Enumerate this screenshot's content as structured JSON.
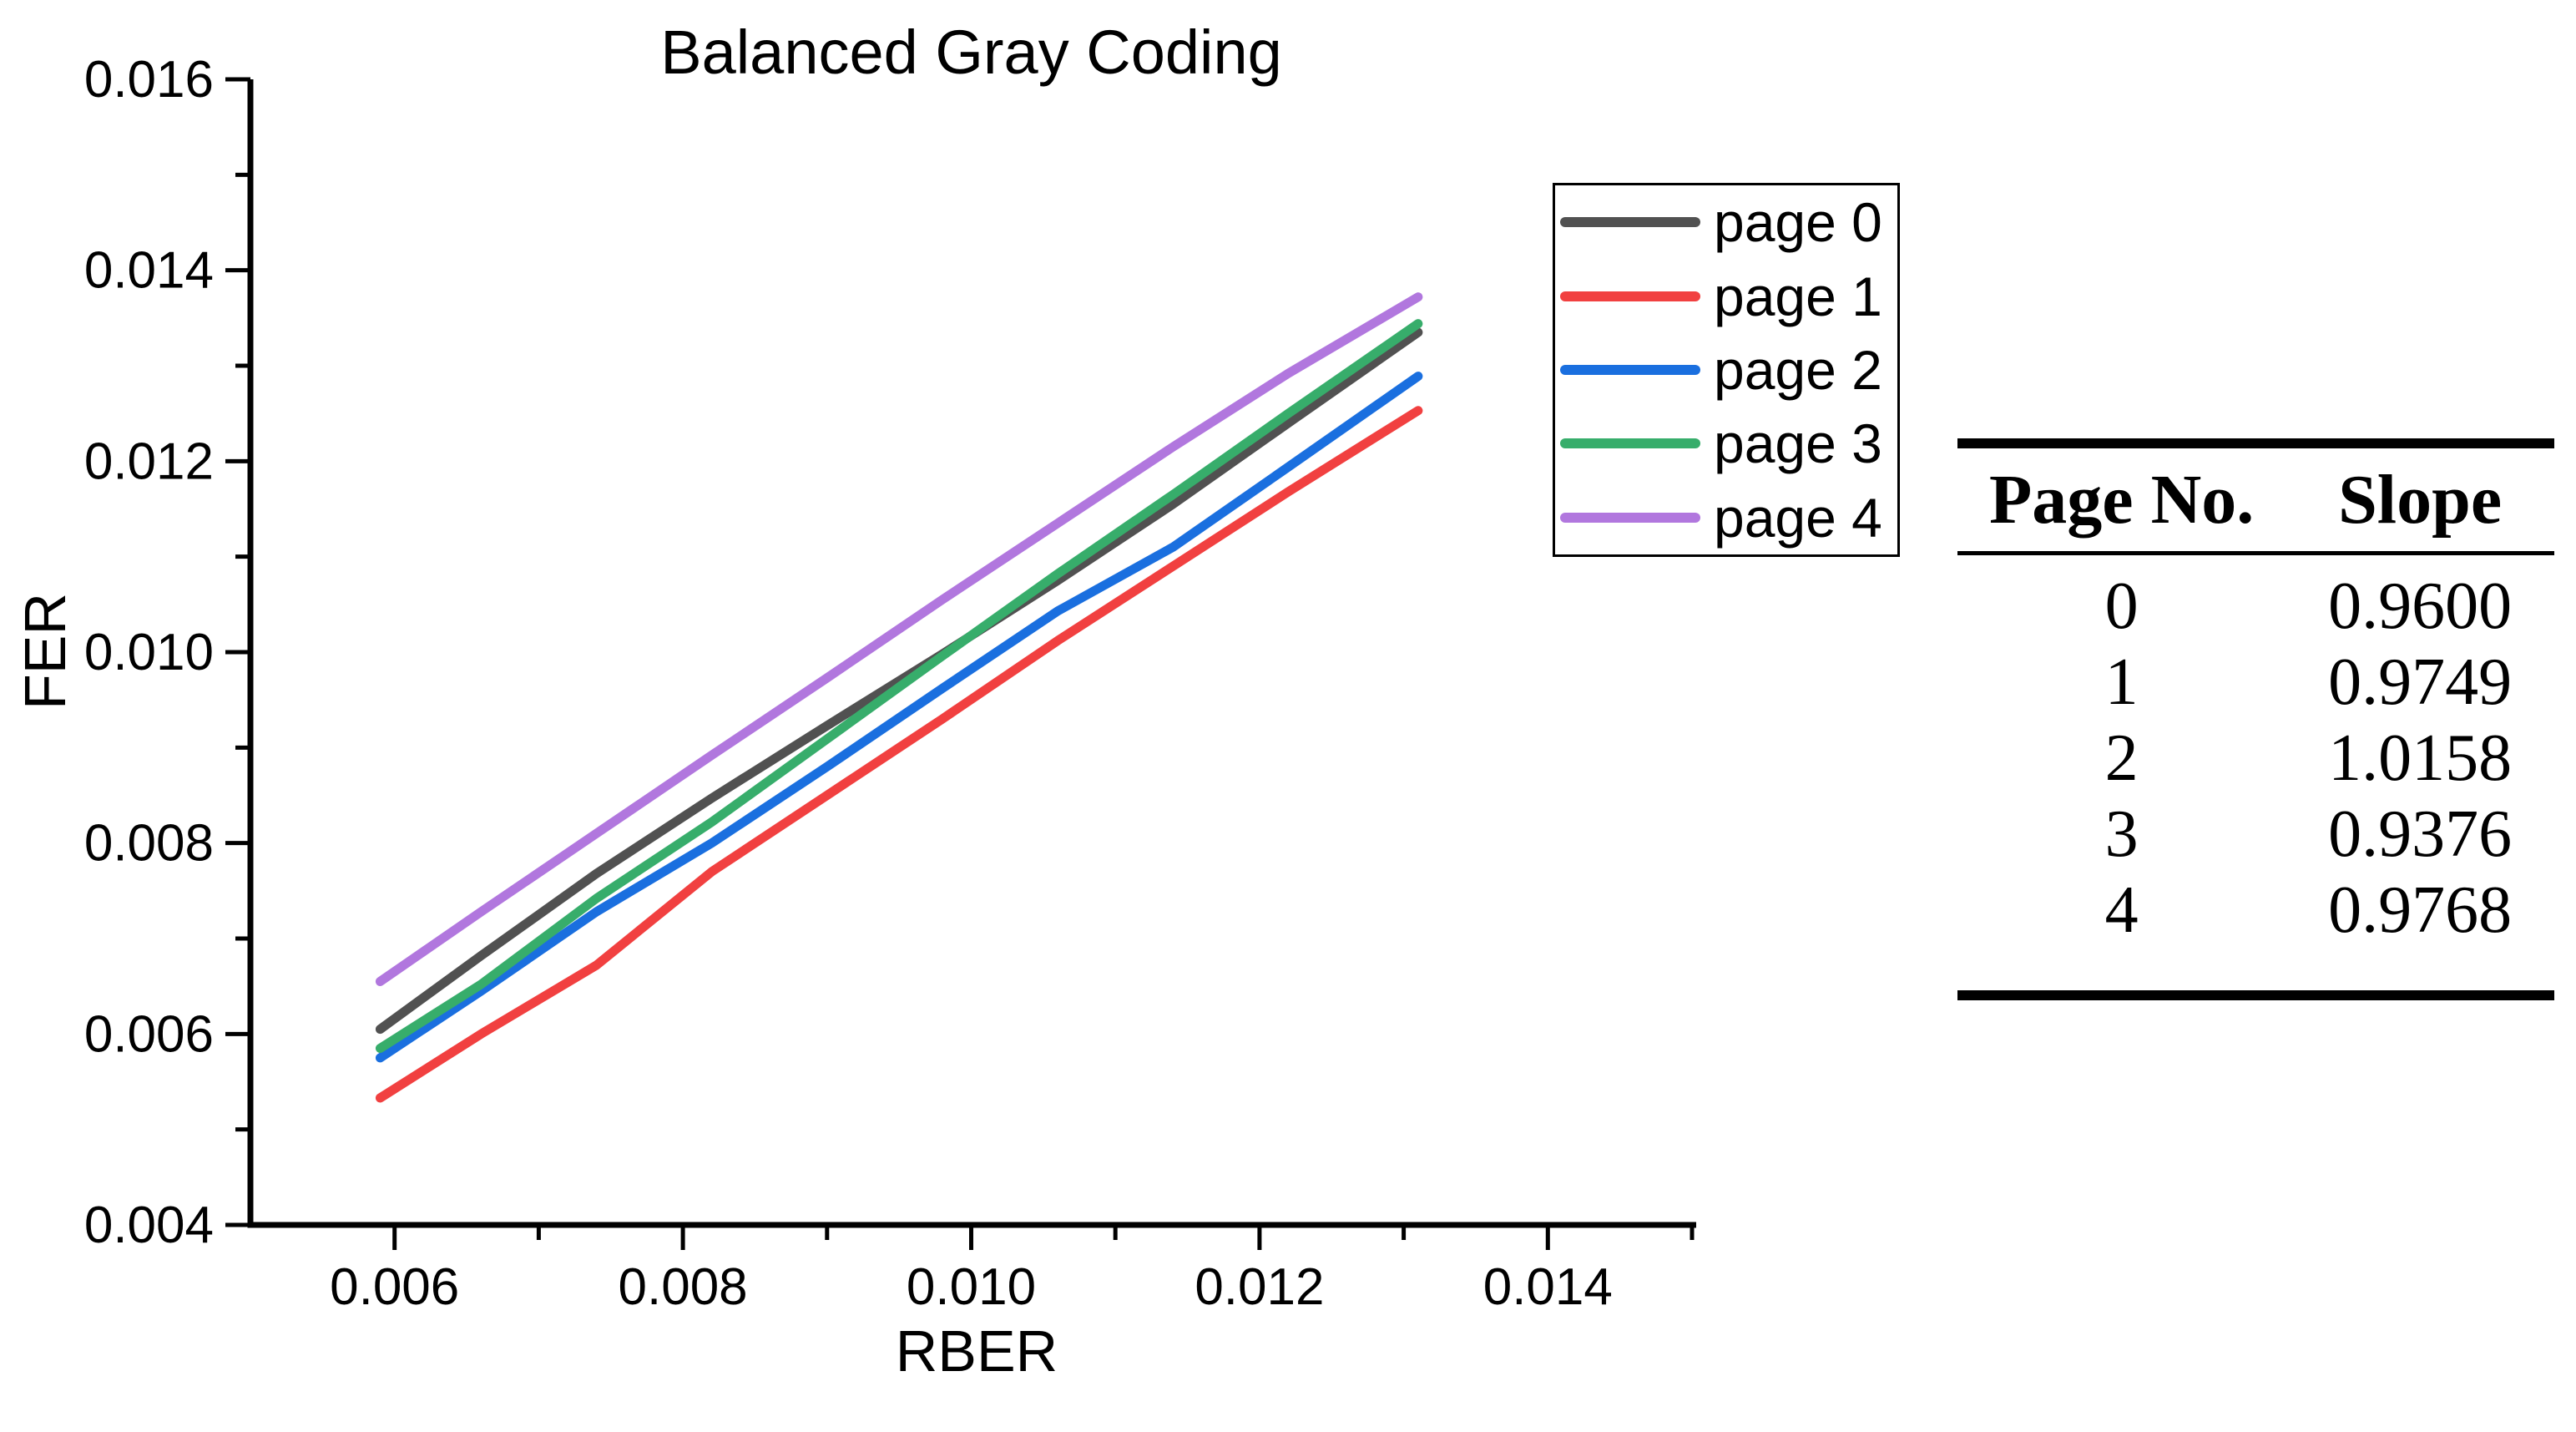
{
  "title": "Balanced Gray Coding",
  "colors": {
    "page0": "#515151",
    "page1": "#F14040",
    "page2": "#1A6FDF",
    "page3": "#37AD6B",
    "page4": "#B177DE",
    "axis": "#000000"
  },
  "chart_data": {
    "type": "line",
    "title": "Balanced Gray Coding",
    "xlabel": "RBER",
    "ylabel": "FER",
    "xlim": [
      0.005,
      0.015
    ],
    "ylim": [
      0.004,
      0.016
    ],
    "grid": false,
    "legend_position": "upper-right-inside",
    "x_major_ticks": [
      {
        "v": 0.006,
        "label": "0.006"
      },
      {
        "v": 0.008,
        "label": "0.008"
      },
      {
        "v": 0.01,
        "label": "0.010"
      },
      {
        "v": 0.012,
        "label": "0.012"
      },
      {
        "v": 0.014,
        "label": "0.014"
      }
    ],
    "x_minor_ticks": [
      0.007,
      0.009,
      0.011,
      0.013,
      0.015
    ],
    "y_major_ticks": [
      {
        "v": 0.004,
        "label": "0.004"
      },
      {
        "v": 0.006,
        "label": "0.006"
      },
      {
        "v": 0.008,
        "label": "0.008"
      },
      {
        "v": 0.01,
        "label": "0.010"
      },
      {
        "v": 0.012,
        "label": "0.012"
      },
      {
        "v": 0.014,
        "label": "0.014"
      },
      {
        "v": 0.016,
        "label": "0.016"
      }
    ],
    "y_minor_ticks": [
      0.005,
      0.007,
      0.009,
      0.011,
      0.013,
      0.015
    ],
    "x": [
      0.0059,
      0.0066,
      0.0074,
      0.0082,
      0.009,
      0.0098,
      0.0106,
      0.0114,
      0.0122,
      0.0131
    ],
    "series": [
      {
        "name": "page 0",
        "color": "#515151",
        "y": [
          0.00605,
          0.00682,
          0.00768,
          0.00847,
          0.00923,
          0.00998,
          0.01075,
          0.01155,
          0.0124,
          0.01335
        ]
      },
      {
        "name": "page 1",
        "color": "#F14040",
        "y": [
          0.00533,
          0.006,
          0.00672,
          0.0077,
          0.0085,
          0.0093,
          0.01012,
          0.0109,
          0.01168,
          0.01253
        ]
      },
      {
        "name": "page 2",
        "color": "#1A6FDF",
        "y": [
          0.00575,
          0.00645,
          0.00728,
          0.008,
          0.0088,
          0.00962,
          0.01043,
          0.0111,
          0.01194,
          0.01289
        ]
      },
      {
        "name": "page 3",
        "color": "#37AD6B",
        "y": [
          0.00585,
          0.00652,
          0.00742,
          0.00822,
          0.00909,
          0.00996,
          0.01082,
          0.01165,
          0.0125,
          0.01344
        ]
      },
      {
        "name": "page 4",
        "color": "#B177DE",
        "y": [
          0.00655,
          0.00728,
          0.0081,
          0.00892,
          0.00973,
          0.01055,
          0.01135,
          0.01215,
          0.01292,
          0.01372
        ]
      }
    ]
  },
  "legend": {
    "entries": [
      {
        "label": "page 0",
        "color": "#515151"
      },
      {
        "label": "page 1",
        "color": "#F14040"
      },
      {
        "label": "page 2",
        "color": "#1A6FDF"
      },
      {
        "label": "page 3",
        "color": "#37AD6B"
      },
      {
        "label": "page 4",
        "color": "#B177DE"
      }
    ]
  },
  "table": {
    "headers": [
      "Page No.",
      "Slope"
    ],
    "rows": [
      [
        "0",
        "0.9600"
      ],
      [
        "1",
        "0.9749"
      ],
      [
        "2",
        "1.0158"
      ],
      [
        "3",
        "0.9376"
      ],
      [
        "4",
        "0.9768"
      ]
    ]
  }
}
